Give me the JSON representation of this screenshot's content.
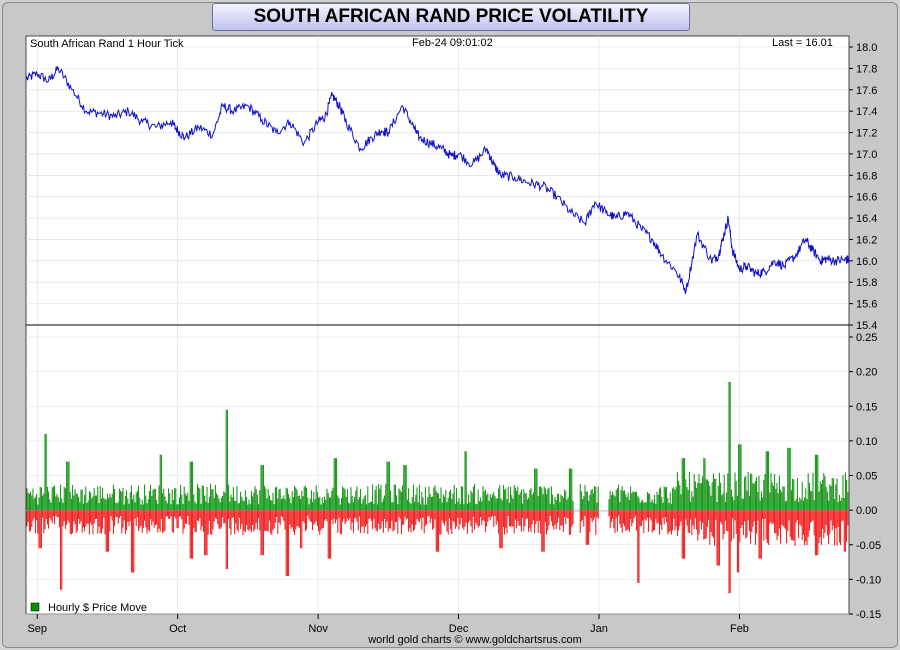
{
  "chart_data": {
    "type": "line",
    "title": "SOUTH AFRICAN RAND PRICE VOLATILITY",
    "subtitle": "South African Rand 1 Hour Tick",
    "timestamp": "Feb-24  09:01:02",
    "last_label": "Last = 16.01",
    "credit": "world gold charts © www.goldchartsrus.com",
    "legend": "Hourly $ Price Move",
    "colors": {
      "line": "#1010cc",
      "up": "#0a8f0a",
      "down": "#ee1111"
    },
    "x_ticks": [
      {
        "label": "Sep",
        "month_index": 0.0
      },
      {
        "label": "Oct",
        "month_index": 1.0
      },
      {
        "label": "Nov",
        "month_index": 2.0
      },
      {
        "label": "Dec",
        "month_index": 3.0
      },
      {
        "label": "Jan",
        "month_index": 4.0
      },
      {
        "label": "Feb",
        "month_index": 5.0
      }
    ],
    "x_range": [
      -0.08,
      5.78
    ],
    "price_axis": {
      "ylim": [
        15.4,
        18.1
      ],
      "ticks": [
        "18.0",
        "17.8",
        "17.6",
        "17.4",
        "17.2",
        "17.0",
        "16.8",
        "16.6",
        "16.4",
        "16.2",
        "16.0",
        "15.8",
        "15.6",
        "15.4"
      ]
    },
    "vol_axis": {
      "ylim": [
        -0.15,
        0.25
      ],
      "ticks": [
        "0.25",
        "0.20",
        "0.15",
        "0.10",
        "0.05",
        "0.00",
        "-0.05",
        "-0.10",
        "-0.15"
      ]
    },
    "price_series": {
      "x": [
        -0.08,
        0.0,
        0.08,
        0.15,
        0.25,
        0.35,
        0.45,
        0.55,
        0.65,
        0.75,
        0.85,
        0.95,
        1.0,
        1.05,
        1.15,
        1.25,
        1.32,
        1.4,
        1.5,
        1.6,
        1.7,
        1.8,
        1.9,
        2.0,
        2.05,
        2.1,
        2.15,
        2.2,
        2.3,
        2.38,
        2.45,
        2.5,
        2.6,
        2.68,
        2.72,
        2.8,
        2.88,
        2.95,
        3.0,
        3.1,
        3.2,
        3.25,
        3.3,
        3.4,
        3.5,
        3.6,
        3.7,
        3.8,
        3.9,
        3.97,
        4.05,
        4.12,
        4.2,
        4.3,
        4.38,
        4.45,
        4.55,
        4.62,
        4.7,
        4.8,
        4.85,
        4.88,
        4.92,
        4.95,
        5.0,
        5.05,
        5.12,
        5.18,
        5.25,
        5.32,
        5.4,
        5.47,
        5.52,
        5.58,
        5.62,
        5.68,
        5.75,
        5.78
      ],
      "y": [
        17.7,
        17.75,
        17.68,
        17.8,
        17.6,
        17.4,
        17.38,
        17.35,
        17.4,
        17.3,
        17.25,
        17.3,
        17.22,
        17.15,
        17.25,
        17.18,
        17.45,
        17.4,
        17.45,
        17.32,
        17.2,
        17.3,
        17.1,
        17.3,
        17.35,
        17.55,
        17.45,
        17.3,
        17.05,
        17.15,
        17.22,
        17.2,
        17.45,
        17.25,
        17.15,
        17.1,
        17.05,
        16.98,
        17.0,
        16.9,
        17.05,
        16.9,
        16.8,
        16.78,
        16.73,
        16.7,
        16.6,
        16.45,
        16.35,
        16.55,
        16.45,
        16.4,
        16.45,
        16.3,
        16.2,
        16.05,
        15.9,
        15.72,
        16.25,
        16.0,
        16.05,
        16.2,
        16.4,
        16.1,
        15.92,
        15.95,
        15.88,
        15.9,
        16.0,
        15.95,
        16.05,
        16.2,
        16.1,
        16.0,
        16.02,
        16.0,
        16.01,
        16.01
      ]
    },
    "volatility_spikes": {
      "up": [
        [
          0.06,
          0.11
        ],
        [
          0.22,
          0.07
        ],
        [
          0.88,
          0.08
        ],
        [
          1.1,
          0.07
        ],
        [
          1.35,
          0.145
        ],
        [
          1.6,
          0.065
        ],
        [
          2.12,
          0.075
        ],
        [
          2.5,
          0.07
        ],
        [
          2.62,
          0.065
        ],
        [
          3.05,
          0.085
        ],
        [
          3.55,
          0.06
        ],
        [
          3.8,
          0.06
        ],
        [
          4.6,
          0.075
        ],
        [
          4.75,
          0.075
        ],
        [
          4.93,
          0.185
        ],
        [
          5.0,
          0.095
        ],
        [
          5.2,
          0.085
        ],
        [
          5.35,
          0.09
        ],
        [
          5.55,
          0.08
        ]
      ],
      "down": [
        [
          0.02,
          -0.055
        ],
        [
          0.17,
          -0.115
        ],
        [
          0.5,
          -0.06
        ],
        [
          0.68,
          -0.09
        ],
        [
          1.1,
          -0.07
        ],
        [
          1.2,
          -0.065
        ],
        [
          1.35,
          -0.085
        ],
        [
          1.6,
          -0.065
        ],
        [
          1.78,
          -0.095
        ],
        [
          1.88,
          -0.055
        ],
        [
          2.08,
          -0.07
        ],
        [
          2.85,
          -0.06
        ],
        [
          3.3,
          -0.055
        ],
        [
          3.6,
          -0.06
        ],
        [
          3.92,
          -0.05
        ],
        [
          4.28,
          -0.105
        ],
        [
          4.6,
          -0.07
        ],
        [
          4.85,
          -0.08
        ],
        [
          4.93,
          -0.12
        ],
        [
          4.99,
          -0.09
        ],
        [
          5.15,
          -0.07
        ],
        [
          5.55,
          -0.065
        ],
        [
          5.75,
          -0.06
        ]
      ],
      "gaps": [
        [
          3.82,
          3.86
        ],
        [
          4.0,
          4.07
        ]
      ]
    }
  }
}
